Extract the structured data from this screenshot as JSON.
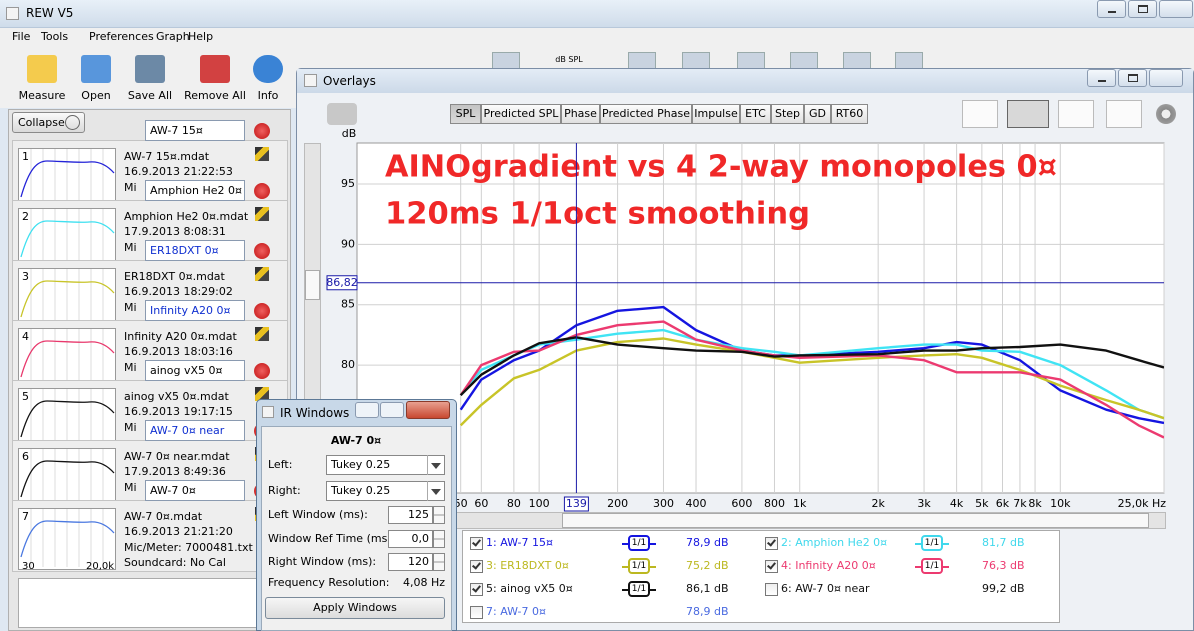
{
  "window": {
    "title": "REW V5",
    "menu": [
      "File",
      "Tools",
      "Preferences",
      "Graph",
      "Help"
    ],
    "toolbar": [
      "Measure",
      "Open",
      "Save All",
      "Remove All",
      "Info"
    ],
    "toolbar_hidden_label": "dB SPL"
  },
  "panel": {
    "collapse": "Collapse",
    "entries": [
      {
        "number": "1",
        "name": "AW-7 15¤",
        "file": "AW-7 15¤.mdat",
        "date": "16.9.2013 21:22:53",
        "mic": "Mi",
        "color": "#2323d8",
        "name_color": "#000000"
      },
      {
        "number": "2",
        "name": "Amphion He2 0¤",
        "file": "Amphion He2 0¤.mdat",
        "date": "17.9.2013 8:08:31",
        "mic": "Mi",
        "color": "#3fe0f0",
        "name_color": "#000000"
      },
      {
        "number": "3",
        "name": "ER18DXT 0¤",
        "file": "ER18DXT 0¤.mdat",
        "date": "16.9.2013 18:29:02",
        "mic": "Mi",
        "color": "#c8c428",
        "name_color": "#1030d0"
      },
      {
        "number": "4",
        "name": "Infinity A20 0¤",
        "file": "Infinity A20 0¤.mdat",
        "date": "16.9.2013 18:03:16",
        "mic": "Mi",
        "color": "#e8386c",
        "name_color": "#1030d0"
      },
      {
        "number": "5",
        "name": "ainog vX5 0¤",
        "file": "ainog vX5 0¤.mdat",
        "date": "16.9.2013 19:17:15",
        "mic": "Mi",
        "color": "#111111",
        "name_color": "#000000"
      },
      {
        "number": "6",
        "name": "AW-7 0¤ near",
        "file": "AW-7 0¤ near.mdat",
        "date": "17.9.2013 8:49:36",
        "mic": "Mi",
        "color": "#111111",
        "name_color": "#1030d0"
      },
      {
        "number": "7",
        "name": "AW-7 0¤",
        "file": "AW-7 0¤.mdat",
        "date": "16.9.2013 21:21:20",
        "mic": "Mic/Meter: 7000481.txt",
        "soundcard": "Soundcard: No Cal",
        "thumb_axis": [
          "30",
          "20,0k"
        ],
        "color": "#4a78e0",
        "name_color": "#000000"
      }
    ]
  },
  "overlays": {
    "title": "Overlays",
    "tabs": [
      "SPL",
      "Predicted SPL",
      "Phase",
      "Predicted Phase",
      "Impulse",
      "ETC",
      "Step",
      "GD",
      "RT60"
    ],
    "active_tab": 0,
    "graph": {
      "type": "line",
      "y_label": "dB",
      "annotations": [
        "AINOgradient vs 4 2-way monopoles 0¤",
        "120ms 1/1oct smoothing"
      ],
      "annotation_color": "#f02828",
      "log_x": true,
      "grid": true,
      "xlim": [
        20,
        25000
      ],
      "ylim": [
        69.4,
        98.4
      ],
      "xticks": [
        50,
        60,
        80,
        100,
        200,
        300,
        400,
        600,
        800,
        {
          "value": 1000,
          "label": "1k"
        },
        {
          "value": 2000,
          "label": "2k"
        },
        {
          "value": 3000,
          "label": "3k"
        },
        {
          "value": 4000,
          "label": "4k"
        },
        {
          "value": 5000,
          "label": "5k"
        },
        {
          "value": 6000,
          "label": "6k"
        },
        {
          "value": 7000,
          "label": "7k"
        },
        {
          "value": 8000,
          "label": "8k"
        },
        {
          "value": 10000,
          "label": "10k"
        },
        {
          "value": 25000,
          "label": "25,0k Hz"
        }
      ],
      "yticks": [
        80,
        85,
        90,
        95
      ],
      "cursor_x": 139,
      "cursor_y": {
        "value": 86.82,
        "label": "86,82"
      },
      "x": [
        50,
        60,
        80,
        100,
        139,
        200,
        300,
        400,
        600,
        800,
        1000,
        2000,
        3000,
        4000,
        5000,
        7000,
        10000,
        15000,
        20000,
        25000
      ],
      "series": [
        {
          "color": "#1515e0",
          "values": [
            76.3,
            78.8,
            80.4,
            81.2,
            83.3,
            84.5,
            84.8,
            82.9,
            81.2,
            80.8,
            80.8,
            81.1,
            81.4,
            81.9,
            81.7,
            80.4,
            77.9,
            76.3,
            75.6,
            75.2
          ]
        },
        {
          "color": "#40e4f4",
          "values": [
            77.5,
            79.6,
            80.8,
            81.7,
            82.1,
            82.6,
            82.9,
            82.1,
            81.4,
            81.1,
            80.8,
            81.4,
            81.7,
            81.7,
            81.2,
            81.1,
            80.0,
            77.9,
            76.3,
            75.6
          ]
        },
        {
          "color": "#c8c428",
          "values": [
            75.0,
            76.7,
            78.9,
            79.6,
            81.2,
            81.9,
            82.2,
            81.7,
            81.1,
            80.6,
            80.2,
            80.6,
            80.8,
            80.9,
            80.6,
            79.6,
            78.3,
            77.1,
            76.3,
            75.6
          ]
        },
        {
          "color": "#ec3a70",
          "values": [
            77.5,
            80.0,
            81.1,
            81.2,
            82.5,
            83.3,
            83.6,
            82.1,
            81.2,
            80.8,
            80.6,
            80.8,
            80.4,
            79.4,
            79.4,
            79.4,
            78.8,
            76.7,
            75.0,
            74.0
          ]
        },
        {
          "color": "#111111",
          "values": [
            77.5,
            79.2,
            80.8,
            81.8,
            82.3,
            81.7,
            81.4,
            81.2,
            81.1,
            80.7,
            80.8,
            80.9,
            81.2,
            81.2,
            81.4,
            81.5,
            81.7,
            81.2,
            80.4,
            79.8
          ]
        }
      ]
    },
    "legend": [
      {
        "label": "1: AW-7 15¤",
        "smoothing": "1/1",
        "level": "78,9 dB",
        "color": "#1515e0",
        "checked": true
      },
      {
        "label": "2: Amphion He2 0¤",
        "smoothing": "1/1",
        "level": "81,7 dB",
        "color": "#40d8ec",
        "checked": true
      },
      {
        "label": "3: ER18DXT 0¤",
        "smoothing": "1/1",
        "level": "75,2 dB",
        "color": "#bcb820",
        "checked": true
      },
      {
        "label": "4: Infinity A20 0¤",
        "smoothing": "1/1",
        "level": "76,3 dB",
        "color": "#ec3a70",
        "checked": true
      },
      {
        "label": "5: ainog vX5 0¤",
        "smoothing": "1/1",
        "level": "86,1 dB",
        "color": "#111111",
        "checked": true
      },
      {
        "label": "6: AW-7 0¤ near",
        "level": "99,2 dB",
        "color": "#111111",
        "checked": false
      },
      {
        "label": "7: AW-7 0¤",
        "level": "78,9 dB",
        "color": "#4a6ae0",
        "checked": false
      }
    ]
  },
  "ir_windows": {
    "title": "IR Windows",
    "measurement": "AW-7 0¤",
    "fields": [
      {
        "label": "Left:",
        "value": "Tukey 0.25"
      },
      {
        "label": "Right:",
        "value": "Tukey 0.25"
      }
    ],
    "spinners": [
      {
        "label": "Left Window (ms):",
        "value": "125"
      },
      {
        "label": "Window Ref Time (ms):",
        "value": "0,0"
      },
      {
        "label": "Right Window (ms):",
        "value": "120"
      }
    ],
    "resolution": {
      "label": "Frequency Resolution:",
      "value": "4,08 Hz"
    },
    "button": "Apply Windows"
  }
}
